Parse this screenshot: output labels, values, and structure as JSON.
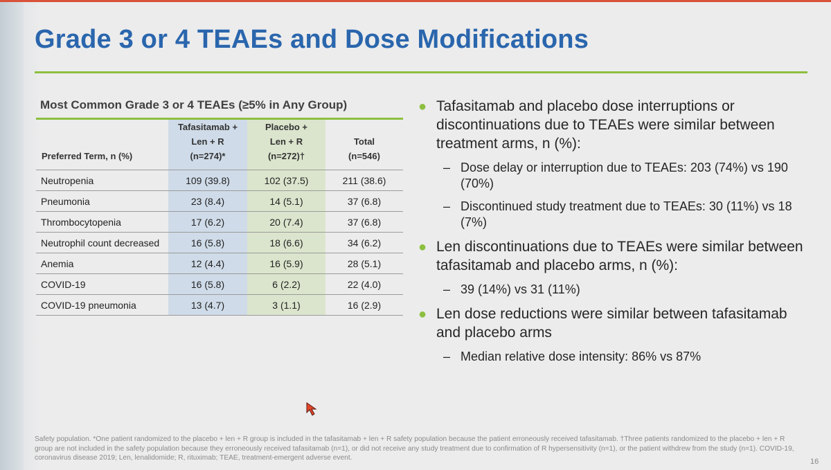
{
  "slide": {
    "title": "Grade 3 or 4 TEAEs and Dose Modifications",
    "page_number": "16",
    "colors": {
      "title": "#2a66ad",
      "accent_green": "#8cbf3f",
      "tafasitamab_col": "#cfdbe8",
      "placebo_col": "#dbe5cd"
    }
  },
  "table": {
    "caption": "Most Common Grade 3 or 4 TEAEs (≥5% in Any Group)",
    "headers": {
      "term": "Preferred Term, n (%)",
      "tafasitamab": [
        "Tafasitamab +",
        "Len + R",
        "(n=274)*"
      ],
      "placebo": [
        "Placebo +",
        "Len + R",
        "(n=272)†"
      ],
      "total": [
        "Total",
        "(n=546)"
      ]
    },
    "rows": [
      {
        "term": "Neutropenia",
        "tafasitamab": "109 (39.8)",
        "placebo": "102 (37.5)",
        "total": "211 (38.6)"
      },
      {
        "term": "Pneumonia",
        "tafasitamab": "23 (8.4)",
        "placebo": "14 (5.1)",
        "total": "37 (6.8)"
      },
      {
        "term": "Thrombocytopenia",
        "tafasitamab": "17 (6.2)",
        "placebo": "20 (7.4)",
        "total": "37 (6.8)"
      },
      {
        "term": "Neutrophil count decreased",
        "tafasitamab": "16 (5.8)",
        "placebo": "18 (6.6)",
        "total": "34 (6.2)"
      },
      {
        "term": "Anemia",
        "tafasitamab": "12 (4.4)",
        "placebo": "16 (5.9)",
        "total": "28 (5.1)"
      },
      {
        "term": "COVID-19",
        "tafasitamab": "16 (5.8)",
        "placebo": "6 (2.2)",
        "total": "22 (4.0)"
      },
      {
        "term": "COVID-19 pneumonia",
        "tafasitamab": "13 (4.7)",
        "placebo": "3 (1.1)",
        "total": "16 (2.9)"
      }
    ]
  },
  "bullets": [
    {
      "text": "Tafasitamab and placebo dose interruptions or discontinuations due to TEAEs were similar between treatment arms, n (%):",
      "subs": [
        "Dose delay or interruption due to TEAEs: 203 (74%) vs 190 (70%)",
        "Discontinued study treatment due to TEAEs: 30 (11%) vs 18 (7%)"
      ]
    },
    {
      "text": "Len discontinuations due to TEAEs were similar between tafasitamab and placebo arms, n (%):",
      "subs": [
        "39 (14%) vs 31 (11%)"
      ]
    },
    {
      "text": "Len dose reductions were similar between tafasitamab and placebo arms",
      "subs": [
        "Median relative dose intensity: 86% vs 87%"
      ]
    }
  ],
  "footnote": "Safety population. *One patient randomized to the placebo + len + R group is included in the tafasitamab + len + R safety population because the patient erroneously received tafasitamab. †Three patients randomized to the placebo + len + R group are not included in the safety population because they erroneously received tafasitamab (n=1), or did not receive any study treatment due to confirmation of R hypersensitivity (n=1), or the patient withdrew from the study (n=1). COVID-19, coronavirus disease 2019; Len, lenalidomide; R, rituximab; TEAE, treatment-emergent adverse event."
}
